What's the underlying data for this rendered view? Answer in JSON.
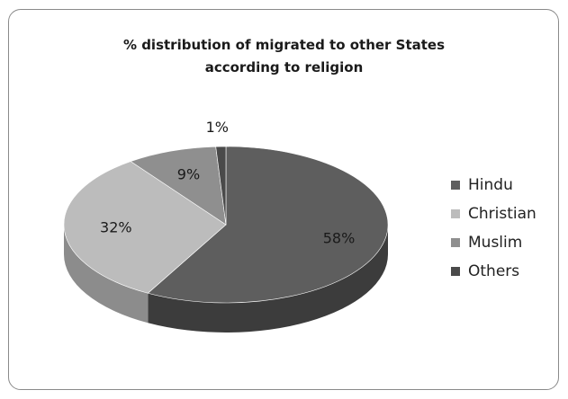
{
  "chart_data": {
    "type": "pie",
    "title_lines": [
      "% distribution of migrated to other States",
      "according to religion"
    ],
    "categories": [
      "Hindu",
      "Christian",
      "Muslim",
      "Others"
    ],
    "values": [
      58,
      32,
      9,
      1
    ],
    "data_labels": [
      "58%",
      "32%",
      "9%",
      "1%"
    ],
    "colors": [
      "#5e5e5e",
      "#bcbcbc",
      "#8f8f8f",
      "#4a4a4a"
    ],
    "side_colors": [
      "#3c3c3c",
      "#8c8c8c",
      "#6a6a6a",
      "#333333"
    ],
    "style": "3d",
    "legend_position": "right"
  }
}
